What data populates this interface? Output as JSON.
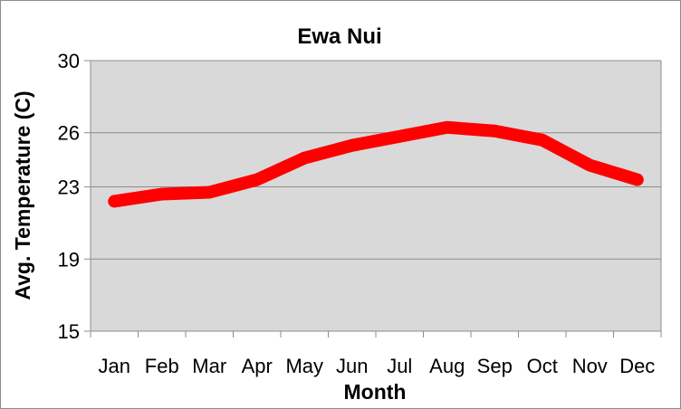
{
  "chart_data": {
    "type": "line",
    "title": "Ewa Nui",
    "xlabel": "Month",
    "ylabel": "Avg. Temperature (C)",
    "categories": [
      "Jan",
      "Feb",
      "Mar",
      "Apr",
      "May",
      "Jun",
      "Jul",
      "Aug",
      "Sep",
      "Oct",
      "Nov",
      "Dec"
    ],
    "y_ticks": [
      "15",
      "19",
      "23",
      "26",
      "30"
    ],
    "ylim": [
      15,
      30
    ],
    "grid": true,
    "legend": "none",
    "series": [
      {
        "values": [
          22.2,
          22.6,
          22.7,
          23.4,
          24.6,
          25.3,
          25.8,
          26.3,
          26.1,
          25.6,
          24.2,
          23.4
        ],
        "color": "#ff0000"
      }
    ],
    "plot_background": "#d9d9d9",
    "gridline_color": "#8c8c8c"
  }
}
